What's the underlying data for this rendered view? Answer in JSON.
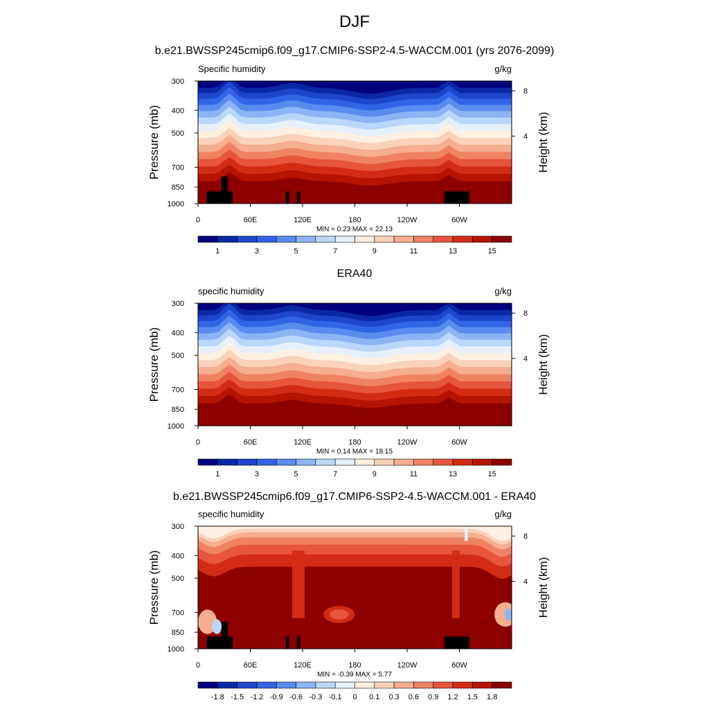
{
  "page": {
    "title": "DJF"
  },
  "palettes": {
    "humidity": [
      "#00007f",
      "#0a28a6",
      "#1e46cc",
      "#3264e6",
      "#5a8cf0",
      "#8cb4f5",
      "#b9d7fa",
      "#e6f0fa",
      "#fff0e1",
      "#fad2b9",
      "#f5ae8f",
      "#f08264",
      "#e6553c",
      "#d22d14",
      "#b41400",
      "#8c0000"
    ],
    "difference": [
      "#00007f",
      "#0a28a6",
      "#1e46cc",
      "#3264e6",
      "#5a8cf0",
      "#8cb4f5",
      "#b9d7fa",
      "#e6f0fa",
      "#fff0e1",
      "#fad2b9",
      "#f5ae8f",
      "#f08264",
      "#e6553c",
      "#d22d14",
      "#b41400",
      "#8c0000"
    ],
    "topography": "#000000"
  },
  "chart_data": [
    {
      "type": "heatmap",
      "title": "b.e21.BWSSP245cmip6.f09_g17.CMIP6-SSP2-4.5-WACCM.001 (yrs 2076-2099)",
      "left_label": "Specific humidity",
      "units": "g/kg",
      "ylabel": "Pressure (mb)",
      "ylabel_right": "Height (km)",
      "xticks": [
        "0",
        "60E",
        "120E",
        "180",
        "120W",
        "60W"
      ],
      "yticks": [
        "300",
        "400",
        "500",
        "700",
        "850",
        "1000"
      ],
      "yticks_right": [
        "8",
        "4"
      ],
      "stats": "MIN =   0.23  MAX =  22.13",
      "colorbar_labels": [
        "1",
        "3",
        "5",
        "7",
        "9",
        "11",
        "13",
        "15"
      ],
      "palette": "humidity",
      "show_topography": true
    },
    {
      "type": "heatmap",
      "title": "ERA40",
      "left_label": "specific humidity",
      "units": "g/kg",
      "ylabel": "Pressure (mb)",
      "ylabel_right": "Height (km)",
      "xticks": [
        "0",
        "60E",
        "120E",
        "180",
        "120W",
        "60W"
      ],
      "yticks": [
        "300",
        "400",
        "500",
        "700",
        "850",
        "1000"
      ],
      "yticks_right": [
        "8",
        "4"
      ],
      "stats": "MIN =   0.14  MAX =  18.15",
      "colorbar_labels": [
        "1",
        "3",
        "5",
        "7",
        "9",
        "11",
        "13",
        "15"
      ],
      "palette": "humidity",
      "show_topography": false
    },
    {
      "type": "heatmap",
      "title": "b.e21.BWSSP245cmip6.f09_g17.CMIP6-SSP2-4.5-WACCM.001 - ERA40",
      "left_label": "specific humidity",
      "units": "g/kg",
      "ylabel": "Pressure (mb)",
      "ylabel_right": "Height (km)",
      "xticks": [
        "0",
        "60E",
        "120E",
        "180",
        "120W",
        "60W"
      ],
      "yticks": [
        "300",
        "400",
        "500",
        "700",
        "850",
        "1000"
      ],
      "yticks_right": [
        "8",
        "4"
      ],
      "stats": "MIN =  -0.39  MAX =   5.77",
      "colorbar_labels": [
        "-1.8",
        "-1.5",
        "-1.2",
        "-0.9",
        "-0.6",
        "-0.3",
        "-0.1",
        "0",
        "0.1",
        "0.3",
        "0.6",
        "0.9",
        "1.2",
        "1.5",
        "1.8"
      ],
      "palette": "difference",
      "show_topography": true
    }
  ]
}
